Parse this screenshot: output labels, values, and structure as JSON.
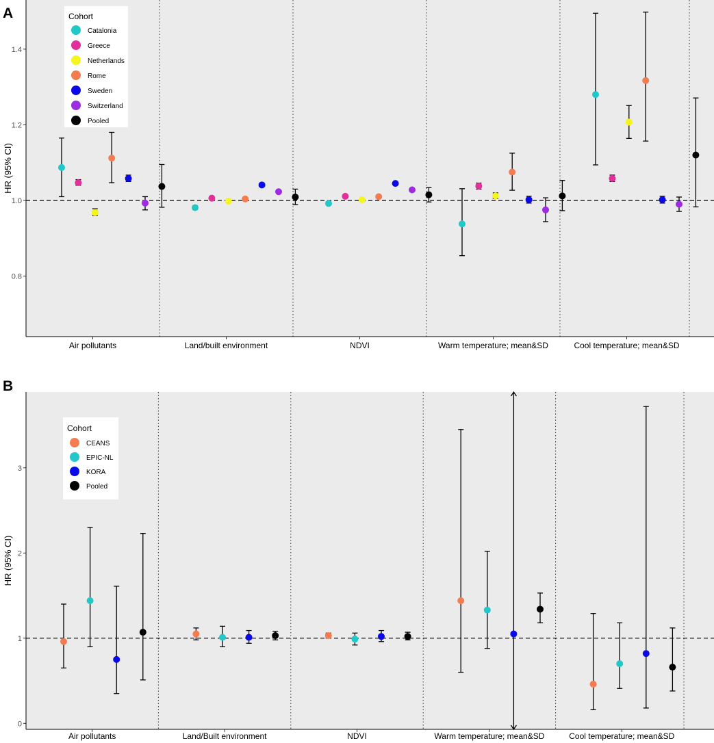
{
  "chart_data": [
    {
      "panel_label": "A",
      "type": "scatter",
      "subtype": "forest-plot",
      "ylabel": "HR (95% CI)",
      "xlabel": "",
      "ylim": [
        0.64,
        1.53
      ],
      "yticks": [
        0.8,
        1.0,
        1.2,
        1.4
      ],
      "ytick_labels": [
        "0.8",
        "1.0",
        "1.2",
        "1.4"
      ],
      "reference_line": 1.0,
      "grid": false,
      "legend_position": "top-left",
      "legend_title": "Cohort",
      "legend": [
        {
          "name": "Catalonia",
          "color": "#22c8c8"
        },
        {
          "name": "Greece",
          "color": "#e0309a"
        },
        {
          "name": "Netherlands",
          "color": "#f4f41e"
        },
        {
          "name": "Rome",
          "color": "#f47c50"
        },
        {
          "name": "Sweden",
          "color": "#0a0ae6"
        },
        {
          "name": "Switzerland",
          "color": "#9c2be2"
        },
        {
          "name": "Pooled",
          "color": "#000000"
        }
      ],
      "categories": [
        "Air pollutants",
        "Land/built environment",
        "NDVI",
        "Warm temperature; mean&SD",
        "Cool temperature; mean&SD"
      ],
      "groups": [
        {
          "category": "Air pollutants",
          "points": [
            {
              "cohort": "Catalonia",
              "hr": 1.087,
              "lo": 1.01,
              "hi": 1.165
            },
            {
              "cohort": "Greece",
              "hr": 1.047,
              "lo": 1.04,
              "hi": 1.055
            },
            {
              "cohort": "Netherlands",
              "hr": 0.968,
              "lo": 0.96,
              "hi": 0.978
            },
            {
              "cohort": "Rome",
              "hr": 1.112,
              "lo": 1.047,
              "hi": 1.18
            },
            {
              "cohort": "Sweden",
              "hr": 1.058,
              "lo": 1.05,
              "hi": 1.067
            },
            {
              "cohort": "Switzerland",
              "hr": 0.993,
              "lo": 0.975,
              "hi": 1.01
            },
            {
              "cohort": "Pooled",
              "hr": 1.037,
              "lo": 0.982,
              "hi": 1.095
            }
          ]
        },
        {
          "category": "Land/built environment",
          "points": [
            {
              "cohort": "Catalonia",
              "hr": 0.981,
              "lo": 0.976,
              "hi": 0.986
            },
            {
              "cohort": "Greece",
              "hr": 1.006
            },
            {
              "cohort": "Netherlands",
              "hr": 0.998
            },
            {
              "cohort": "Rome",
              "hr": 1.004
            },
            {
              "cohort": "Sweden",
              "hr": 1.041
            },
            {
              "cohort": "Switzerland",
              "hr": 1.023
            },
            {
              "cohort": "Pooled",
              "hr": 1.009,
              "lo": 0.989,
              "hi": 1.03
            }
          ]
        },
        {
          "category": "NDVI",
          "points": [
            {
              "cohort": "Catalonia",
              "hr": 0.992
            },
            {
              "cohort": "Greece",
              "hr": 1.011
            },
            {
              "cohort": "Netherlands",
              "hr": 1.002
            },
            {
              "cohort": "Rome",
              "hr": 1.01
            },
            {
              "cohort": "Sweden",
              "hr": 1.045
            },
            {
              "cohort": "Switzerland",
              "hr": 1.028
            },
            {
              "cohort": "Pooled",
              "hr": 1.015,
              "lo": 0.996,
              "hi": 1.034
            }
          ]
        },
        {
          "category": "Warm temperature; mean&SD",
          "points": [
            {
              "cohort": "Catalonia",
              "hr": 0.938,
              "lo": 0.854,
              "hi": 1.031
            },
            {
              "cohort": "Greece",
              "hr": 1.038,
              "lo": 1.03,
              "hi": 1.046
            },
            {
              "cohort": "Netherlands",
              "hr": 1.012,
              "lo": 1.005,
              "hi": 1.02
            },
            {
              "cohort": "Rome",
              "hr": 1.075,
              "lo": 1.027,
              "hi": 1.125
            },
            {
              "cohort": "Sweden",
              "hr": 1.002,
              "lo": 0.993,
              "hi": 1.011
            },
            {
              "cohort": "Switzerland",
              "hr": 0.975,
              "lo": 0.944,
              "hi": 1.007
            },
            {
              "cohort": "Pooled",
              "hr": 1.012,
              "lo": 0.973,
              "hi": 1.053
            }
          ]
        },
        {
          "category": "Cool temperature; mean&SD",
          "points": [
            {
              "cohort": "Catalonia",
              "hr": 1.28,
              "lo": 1.094,
              "hi": 1.495
            },
            {
              "cohort": "Greece",
              "hr": 1.058,
              "lo": 1.05,
              "hi": 1.067
            },
            {
              "cohort": "Netherlands",
              "hr": 1.207,
              "lo": 1.164,
              "hi": 1.251
            },
            {
              "cohort": "Rome",
              "hr": 1.317,
              "lo": 1.157,
              "hi": 1.498
            },
            {
              "cohort": "Sweden",
              "hr": 1.002,
              "lo": 0.993,
              "hi": 1.011
            },
            {
              "cohort": "Switzerland",
              "hr": 0.99,
              "lo": 0.971,
              "hi": 1.009
            },
            {
              "cohort": "Pooled",
              "hr": 1.12,
              "lo": 0.983,
              "hi": 1.271
            }
          ]
        }
      ]
    },
    {
      "panel_label": "B",
      "type": "scatter",
      "subtype": "forest-plot",
      "ylabel": "HR (95% CI)",
      "xlabel": "",
      "ylim": [
        -0.07,
        3.89
      ],
      "yticks": [
        0,
        1,
        2,
        3
      ],
      "ytick_labels": [
        "0",
        "1",
        "2",
        "3"
      ],
      "reference_line": 1.0,
      "grid": false,
      "legend_position": "top-left",
      "legend_title": "Cohort",
      "legend": [
        {
          "name": "CEANS",
          "color": "#f47c50"
        },
        {
          "name": "EPIC-NL",
          "color": "#22c8c8"
        },
        {
          "name": "KORA",
          "color": "#0a0ae6"
        },
        {
          "name": "Pooled",
          "color": "#000000"
        }
      ],
      "categories": [
        "Air pollutants",
        "Land/Built environment",
        "NDVI",
        "Warm temperature; mean&SD",
        "Cool temperature; mean&SD"
      ],
      "groups": [
        {
          "category": "Air pollutants",
          "points": [
            {
              "cohort": "CEANS",
              "hr": 0.96,
              "lo": 0.65,
              "hi": 1.4
            },
            {
              "cohort": "EPIC-NL",
              "hr": 1.44,
              "lo": 0.9,
              "hi": 2.3
            },
            {
              "cohort": "KORA",
              "hr": 0.75,
              "lo": 0.35,
              "hi": 1.61
            },
            {
              "cohort": "Pooled",
              "hr": 1.07,
              "lo": 0.51,
              "hi": 2.23
            }
          ]
        },
        {
          "category": "Land/Built environment",
          "points": [
            {
              "cohort": "CEANS",
              "hr": 1.05,
              "lo": 0.98,
              "hi": 1.12
            },
            {
              "cohort": "EPIC-NL",
              "hr": 1.01,
              "lo": 0.9,
              "hi": 1.14
            },
            {
              "cohort": "KORA",
              "hr": 1.01,
              "lo": 0.94,
              "hi": 1.09
            },
            {
              "cohort": "Pooled",
              "hr": 1.03,
              "lo": 0.98,
              "hi": 1.08
            }
          ]
        },
        {
          "category": "NDVI",
          "points": [
            {
              "cohort": "CEANS",
              "hr": 1.03,
              "lo": 1.0,
              "hi": 1.06
            },
            {
              "cohort": "EPIC-NL",
              "hr": 0.99,
              "lo": 0.92,
              "hi": 1.06
            },
            {
              "cohort": "KORA",
              "hr": 1.02,
              "lo": 0.96,
              "hi": 1.09
            },
            {
              "cohort": "Pooled",
              "hr": 1.02,
              "lo": 0.98,
              "hi": 1.07
            }
          ]
        },
        {
          "category": "Warm temperature; mean&SD",
          "points": [
            {
              "cohort": "CEANS",
              "hr": 1.44,
              "lo": 0.6,
              "hi": 3.45
            },
            {
              "cohort": "EPIC-NL",
              "hr": 1.33,
              "lo": 0.88,
              "hi": 2.02
            },
            {
              "cohort": "KORA",
              "hr": 1.05,
              "lo": -0.07,
              "hi": 3.89,
              "clipped_low": true,
              "clipped_high": true
            },
            {
              "cohort": "Pooled",
              "hr": 1.34,
              "lo": 1.18,
              "hi": 1.53
            }
          ]
        },
        {
          "category": "Cool temperature; mean&SD",
          "points": [
            {
              "cohort": "CEANS",
              "hr": 0.46,
              "lo": 0.16,
              "hi": 1.29
            },
            {
              "cohort": "EPIC-NL",
              "hr": 0.7,
              "lo": 0.41,
              "hi": 1.18
            },
            {
              "cohort": "KORA",
              "hr": 0.82,
              "lo": 0.18,
              "hi": 3.72
            },
            {
              "cohort": "Pooled",
              "hr": 0.66,
              "lo": 0.38,
              "hi": 1.12
            }
          ]
        }
      ]
    }
  ]
}
